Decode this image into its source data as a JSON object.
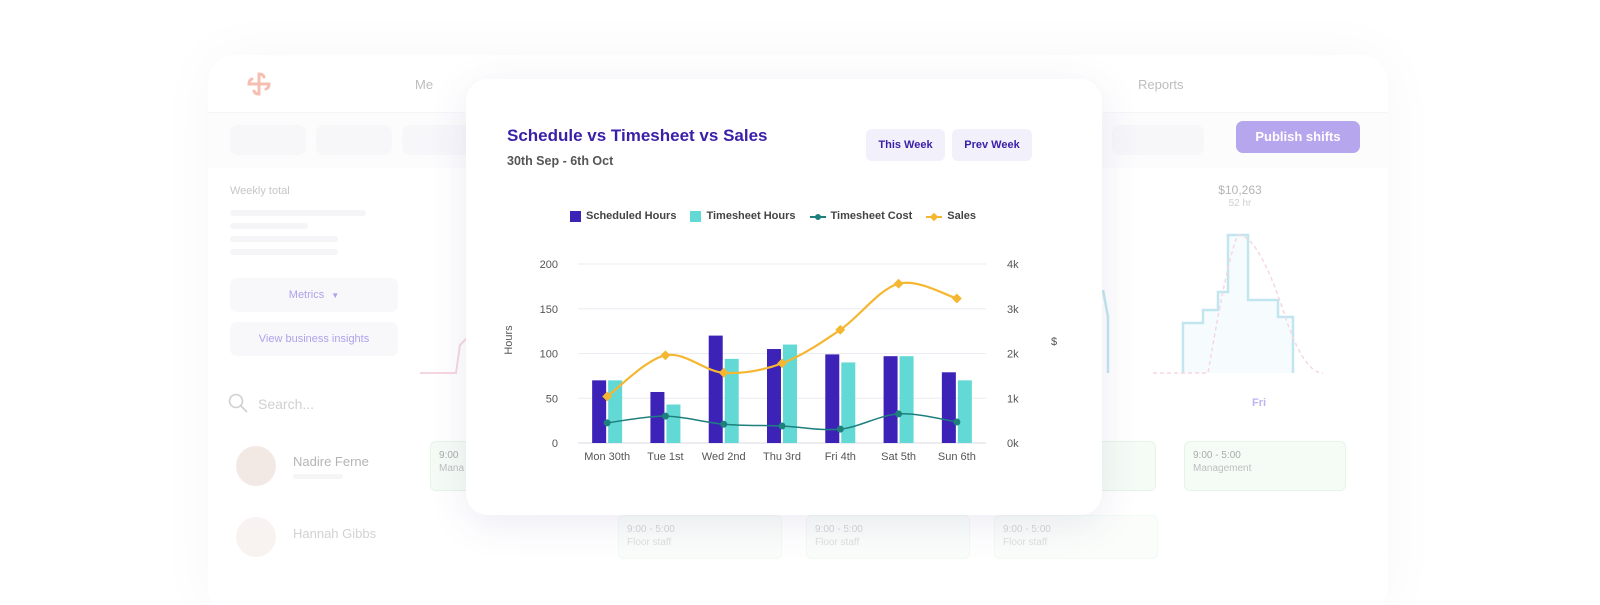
{
  "background": {
    "nav": {
      "me_label": "Me",
      "reports_label": "Reports"
    },
    "publish_label": "Publish shifts",
    "weekly_total_label": "Weekly total",
    "metrics_label": "Metrics",
    "insights_label": "View business insights",
    "search_placeholder": "Search...",
    "people": [
      {
        "name": "Nadire Ferne"
      },
      {
        "name": "Hannah Gibbs"
      }
    ],
    "day_total": {
      "amount": "$10,263",
      "hours": "52 hr"
    },
    "day_label": "Fri",
    "shifts": [
      {
        "time": "9:00",
        "role": "Mana"
      },
      {
        "time": "9:00 - 5:00",
        "role": "Management"
      },
      {
        "time": "9:00 - 5:00",
        "role": "Floor staff"
      },
      {
        "time": "9:00 - 5:00",
        "role": "Floor staff"
      },
      {
        "time": "9:00 - 5:00",
        "role": "Floor staff"
      }
    ]
  },
  "card": {
    "title": "Schedule vs Timesheet vs Sales",
    "subtitle": "30th Sep - 6th Oct",
    "this_week_label": "This Week",
    "prev_week_label": "Prev Week"
  },
  "chart_data": {
    "type": "bar",
    "categories": [
      "Mon 30th",
      "Tue 1st",
      "Wed 2nd",
      "Thu 3rd",
      "Fri 4th",
      "Sat 5th",
      "Sun 6th"
    ],
    "series": [
      {
        "name": "Scheduled Hours",
        "kind": "bar",
        "axis": "left",
        "color": "#3d22b8",
        "values": [
          70,
          57,
          120,
          105,
          99,
          97,
          79
        ]
      },
      {
        "name": "Timesheet Hours",
        "kind": "bar",
        "axis": "left",
        "color": "#63d9d6",
        "values": [
          70,
          43,
          94,
          110,
          90,
          97,
          70
        ]
      },
      {
        "name": "Timesheet Cost",
        "kind": "line",
        "axis": "right",
        "color": "#1e7f7c",
        "values": [
          450,
          600,
          420,
          380,
          310,
          650,
          470
        ]
      },
      {
        "name": "Sales",
        "kind": "line",
        "axis": "right",
        "color": "#f5b731",
        "values": [
          1040,
          1960,
          1570,
          1780,
          2530,
          3560,
          3230
        ]
      }
    ],
    "ylabel": "Hours",
    "y2label": "$",
    "ylim": [
      0,
      200
    ],
    "y2lim": [
      0,
      4000
    ],
    "yticks": [
      "0",
      "50",
      "100",
      "150",
      "200"
    ],
    "y2ticks": [
      "0k",
      "1k",
      "2k",
      "3k",
      "4k"
    ],
    "grid": true,
    "legend_position": "top"
  }
}
